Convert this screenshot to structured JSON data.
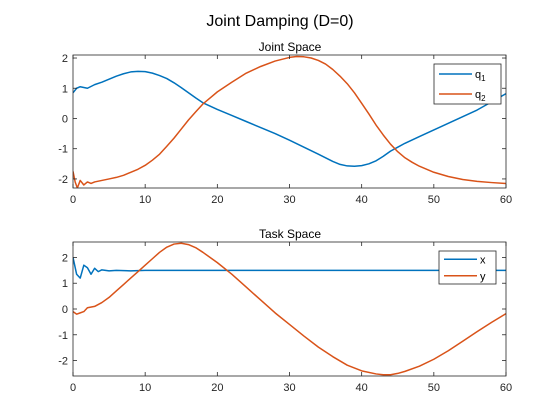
{
  "figure_title": "Joint Damping (D=0)",
  "colors": {
    "series1": "#0072BD",
    "series2": "#D95319"
  },
  "chart_data": [
    {
      "type": "line",
      "title": "Joint Space",
      "xlabel": "",
      "ylabel": "",
      "xlim": [
        0,
        60
      ],
      "ylim": [
        -2.3,
        2.1
      ],
      "xticks": [
        0,
        10,
        20,
        30,
        40,
        50,
        60
      ],
      "yticks": [
        -2,
        -1,
        0,
        1,
        2
      ],
      "grid": false,
      "legend_position": "top-right",
      "series": [
        {
          "name": "q1",
          "label_main": "q",
          "label_sub": "1",
          "color": "#0072BD",
          "points": [
            [
              0,
              0.85
            ],
            [
              0.5,
              1.0
            ],
            [
              1,
              1.05
            ],
            [
              2,
              1.0
            ],
            [
              3,
              1.12
            ],
            [
              4,
              1.2
            ],
            [
              5,
              1.3
            ],
            [
              6,
              1.4
            ],
            [
              7,
              1.48
            ],
            [
              8,
              1.54
            ],
            [
              9,
              1.56
            ],
            [
              10,
              1.55
            ],
            [
              11,
              1.5
            ],
            [
              12,
              1.42
            ],
            [
              13,
              1.32
            ],
            [
              14,
              1.18
            ],
            [
              15,
              1.02
            ],
            [
              16,
              0.85
            ],
            [
              17,
              0.68
            ],
            [
              18,
              0.52
            ],
            [
              20,
              0.3
            ],
            [
              22,
              0.1
            ],
            [
              24,
              -0.1
            ],
            [
              26,
              -0.3
            ],
            [
              28,
              -0.5
            ],
            [
              30,
              -0.72
            ],
            [
              32,
              -0.95
            ],
            [
              34,
              -1.18
            ],
            [
              36,
              -1.42
            ],
            [
              37,
              -1.52
            ],
            [
              38,
              -1.57
            ],
            [
              39,
              -1.58
            ],
            [
              40,
              -1.56
            ],
            [
              41,
              -1.5
            ],
            [
              42,
              -1.4
            ],
            [
              43,
              -1.25
            ],
            [
              44,
              -1.08
            ],
            [
              45,
              -0.95
            ],
            [
              46,
              -0.82
            ],
            [
              48,
              -0.6
            ],
            [
              50,
              -0.38
            ],
            [
              52,
              -0.16
            ],
            [
              54,
              0.06
            ],
            [
              56,
              0.28
            ],
            [
              58,
              0.55
            ],
            [
              60,
              0.82
            ]
          ]
        },
        {
          "name": "q2",
          "label_main": "q",
          "label_sub": "2",
          "color": "#D95319",
          "points": [
            [
              0,
              -1.75
            ],
            [
              0.3,
              -2.1
            ],
            [
              0.6,
              -2.3
            ],
            [
              1,
              -2.05
            ],
            [
              1.5,
              -2.2
            ],
            [
              2,
              -2.1
            ],
            [
              2.5,
              -2.15
            ],
            [
              3,
              -2.1
            ],
            [
              4,
              -2.05
            ],
            [
              5,
              -2.0
            ],
            [
              6,
              -1.95
            ],
            [
              7,
              -1.88
            ],
            [
              8,
              -1.78
            ],
            [
              9,
              -1.68
            ],
            [
              10,
              -1.55
            ],
            [
              11,
              -1.38
            ],
            [
              12,
              -1.18
            ],
            [
              13,
              -0.92
            ],
            [
              14,
              -0.65
            ],
            [
              15,
              -0.35
            ],
            [
              16,
              -0.05
            ],
            [
              17,
              0.22
            ],
            [
              18,
              0.48
            ],
            [
              19,
              0.68
            ],
            [
              20,
              0.88
            ],
            [
              22,
              1.2
            ],
            [
              24,
              1.5
            ],
            [
              26,
              1.72
            ],
            [
              28,
              1.9
            ],
            [
              30,
              2.02
            ],
            [
              31,
              2.05
            ],
            [
              32,
              2.04
            ],
            [
              33,
              2.0
            ],
            [
              34,
              1.92
            ],
            [
              35,
              1.8
            ],
            [
              36,
              1.62
            ],
            [
              37,
              1.4
            ],
            [
              38,
              1.15
            ],
            [
              39,
              0.85
            ],
            [
              40,
              0.5
            ],
            [
              41,
              0.15
            ],
            [
              42,
              -0.22
            ],
            [
              43,
              -0.55
            ],
            [
              44,
              -0.85
            ],
            [
              45,
              -1.1
            ],
            [
              46,
              -1.3
            ],
            [
              47,
              -1.45
            ],
            [
              48,
              -1.58
            ],
            [
              50,
              -1.78
            ],
            [
              52,
              -1.92
            ],
            [
              54,
              -2.02
            ],
            [
              56,
              -2.08
            ],
            [
              58,
              -2.12
            ],
            [
              60,
              -2.15
            ]
          ]
        }
      ]
    },
    {
      "type": "line",
      "title": "Task Space",
      "xlabel": "",
      "ylabel": "",
      "xlim": [
        0,
        60
      ],
      "ylim": [
        -2.6,
        2.6
      ],
      "xticks": [
        0,
        10,
        20,
        30,
        40,
        50,
        60
      ],
      "yticks": [
        -2,
        -1,
        0,
        1,
        2
      ],
      "grid": false,
      "legend_position": "top-right",
      "series": [
        {
          "name": "x",
          "label_main": "x",
          "label_sub": "",
          "color": "#0072BD",
          "points": [
            [
              0,
              2.0
            ],
            [
              0.5,
              1.35
            ],
            [
              1,
              1.2
            ],
            [
              1.5,
              1.7
            ],
            [
              2,
              1.6
            ],
            [
              2.5,
              1.35
            ],
            [
              3,
              1.58
            ],
            [
              3.5,
              1.45
            ],
            [
              4,
              1.52
            ],
            [
              5,
              1.48
            ],
            [
              6,
              1.5
            ],
            [
              8,
              1.48
            ],
            [
              10,
              1.5
            ],
            [
              20,
              1.5
            ],
            [
              30,
              1.5
            ],
            [
              40,
              1.5
            ],
            [
              50,
              1.5
            ],
            [
              60,
              1.5
            ]
          ]
        },
        {
          "name": "y",
          "label_main": "y",
          "label_sub": "",
          "color": "#D95319",
          "points": [
            [
              0,
              -0.1
            ],
            [
              0.5,
              -0.2
            ],
            [
              1,
              -0.15
            ],
            [
              1.5,
              -0.1
            ],
            [
              2,
              0.05
            ],
            [
              3,
              0.1
            ],
            [
              4,
              0.25
            ],
            [
              5,
              0.45
            ],
            [
              6,
              0.7
            ],
            [
              7,
              0.95
            ],
            [
              8,
              1.2
            ],
            [
              9,
              1.45
            ],
            [
              10,
              1.7
            ],
            [
              11,
              1.95
            ],
            [
              12,
              2.2
            ],
            [
              13,
              2.4
            ],
            [
              14,
              2.52
            ],
            [
              15,
              2.55
            ],
            [
              16,
              2.5
            ],
            [
              17,
              2.38
            ],
            [
              18,
              2.2
            ],
            [
              20,
              1.8
            ],
            [
              22,
              1.35
            ],
            [
              24,
              0.85
            ],
            [
              26,
              0.35
            ],
            [
              28,
              -0.15
            ],
            [
              30,
              -0.6
            ],
            [
              32,
              -1.05
            ],
            [
              34,
              -1.48
            ],
            [
              36,
              -1.85
            ],
            [
              38,
              -2.18
            ],
            [
              40,
              -2.4
            ],
            [
              42,
              -2.52
            ],
            [
              43,
              -2.55
            ],
            [
              44,
              -2.55
            ],
            [
              45,
              -2.5
            ],
            [
              46,
              -2.42
            ],
            [
              48,
              -2.22
            ],
            [
              50,
              -1.95
            ],
            [
              52,
              -1.62
            ],
            [
              54,
              -1.25
            ],
            [
              56,
              -0.88
            ],
            [
              58,
              -0.52
            ],
            [
              60,
              -0.18
            ]
          ]
        }
      ]
    }
  ]
}
